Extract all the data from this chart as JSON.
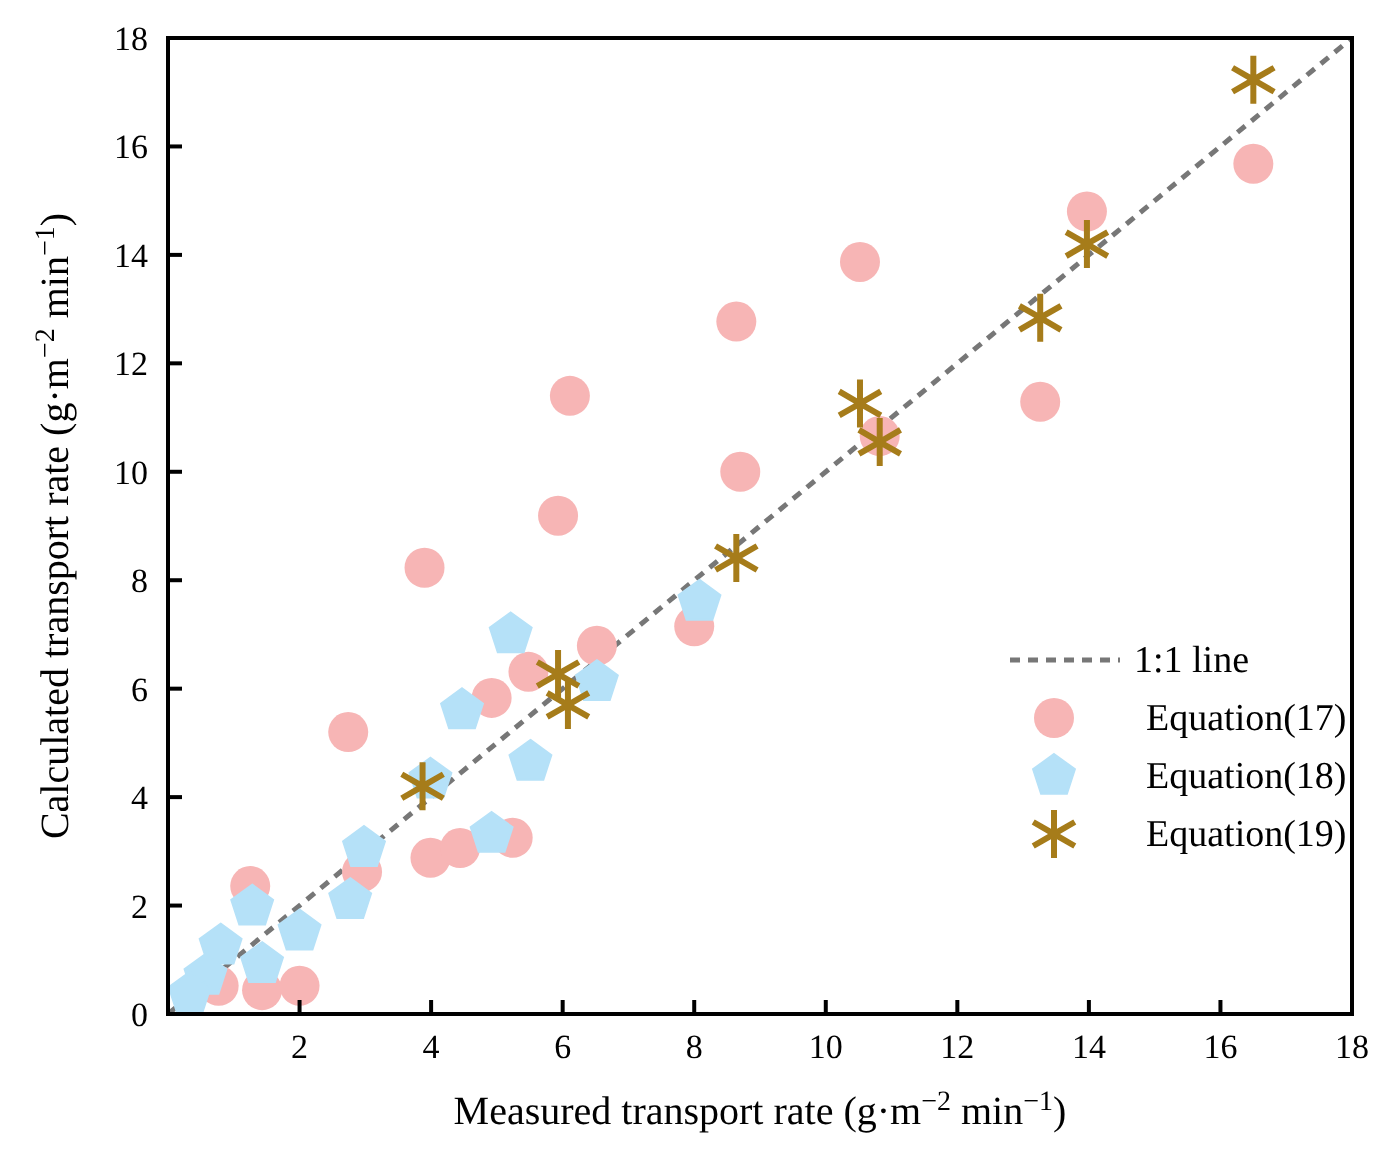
{
  "chart_data": {
    "type": "scatter",
    "xlabel": "Measured transport rate (g·m$^{−2}$ min$^{−1}$)",
    "ylabel": "Calculated transport rate (g·m$^{−2}$ min$^{−1}$)",
    "xlim": [
      0,
      18
    ],
    "ylim": [
      0,
      18
    ],
    "xticks": [
      {
        "value": 0,
        "label": null
      },
      2,
      4,
      6,
      8,
      10,
      12,
      14,
      16,
      18
    ],
    "yticks": [
      0,
      2,
      4,
      6,
      8,
      10,
      12,
      14,
      16,
      18
    ],
    "grid": false,
    "legend": "bottom right",
    "series": [
      {
        "name": "1:1 line",
        "type": "line",
        "color": "#777777",
        "line_style": "dashed",
        "marker": "none",
        "x": [
          0,
          18
        ],
        "values": [
          0,
          18
        ]
      },
      {
        "name": "Equation(17)",
        "color": "#f7b5b5",
        "marker": "circle",
        "x": [
          3.9,
          2.74,
          1.25,
          2.95,
          3.99,
          4.44,
          5.24,
          4.92,
          5.48,
          6.52,
          8.0,
          0.77,
          1.43,
          2.0,
          13.97,
          10.52,
          8.64,
          6.11,
          8.7,
          5.93,
          13.26,
          10.82,
          16.5
        ],
        "values": [
          8.23,
          5.2,
          2.36,
          2.62,
          2.88,
          3.06,
          3.25,
          5.83,
          6.31,
          6.79,
          7.15,
          0.52,
          0.44,
          0.52,
          14.8,
          13.87,
          12.77,
          11.4,
          10.0,
          9.19,
          11.29,
          10.66,
          15.68
        ]
      },
      {
        "name": "Equation(18)",
        "color": "#b5e1f8",
        "x": [
          5.21,
          4.47,
          6.52,
          5.51,
          4.92,
          2.98,
          2.77,
          1.28,
          2.0,
          0.8,
          1.43,
          0.57,
          0.33,
          3.99,
          8.08
        ],
        "values": [
          7.0,
          5.6,
          6.12,
          4.65,
          3.32,
          3.06,
          2.1,
          1.98,
          1.52,
          1.26,
          0.92,
          0.7,
          0.37,
          4.32,
          7.6
        ]
      },
      {
        "name": "Equation(19)",
        "color": "#a67c1a",
        "marker": "cross",
        "x": [
          3.87,
          5.93,
          6.08,
          8.64,
          10.52,
          10.82,
          13.26,
          13.97,
          16.5
        ],
        "values": [
          4.2,
          6.27,
          5.7,
          8.41,
          11.26,
          10.55,
          12.84,
          14.2,
          17.23
        ]
      }
    ]
  }
}
